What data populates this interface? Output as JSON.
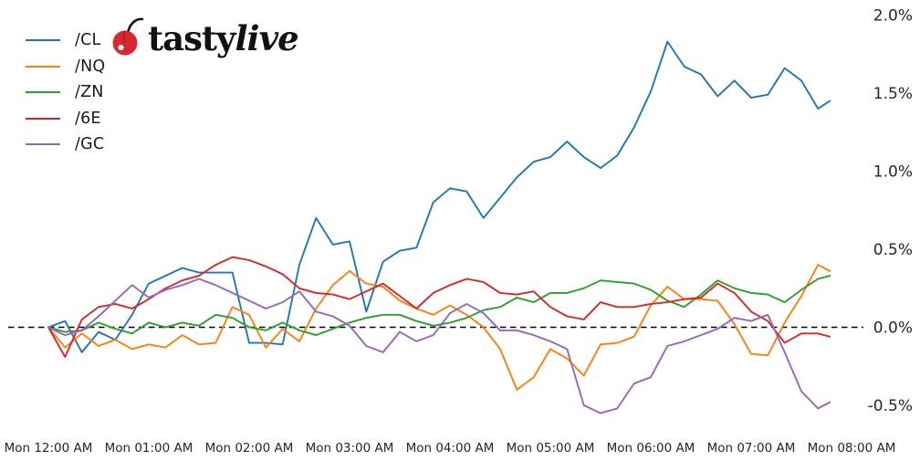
{
  "page": {
    "background": "#ffffff"
  },
  "logo": {
    "brand_primary": "tasty",
    "brand_secondary": "live",
    "cherry_color": "#d7282f",
    "stem_color": "#111111",
    "text_color": "#111111"
  },
  "legend": {
    "items": [
      {
        "label": "/CL",
        "color": "#1f77b4"
      },
      {
        "label": "/NQ",
        "color": "#ff7f0e"
      },
      {
        "label": "/ZN",
        "color": "#2ca02c"
      },
      {
        "label": "/6E",
        "color": "#d62728"
      },
      {
        "label": "/GC",
        "color": "#9467bd"
      }
    ]
  },
  "chart_data": {
    "type": "line",
    "title": "",
    "xlabel": "",
    "ylabel": "",
    "grid": false,
    "legend_position": "upper-left",
    "x_axis": {
      "tick_labels": [
        "Mon 12:00 AM",
        "Mon 01:00 AM",
        "Mon 02:00 AM",
        "Mon 03:00 AM",
        "Mon 04:00 AM",
        "Mon 05:00 AM",
        "Mon 06:00 AM",
        "Mon 07:00 AM",
        "Mon 08:00 AM"
      ],
      "tick_minutes": [
        0,
        60,
        120,
        180,
        240,
        300,
        360,
        420,
        480
      ]
    },
    "y_axis": {
      "side": "right",
      "unit": "%",
      "tick_labels": [
        "2.0%",
        "1.5%",
        "1.0%",
        "0.5%",
        "0.0%",
        "-0.5%"
      ],
      "tick_values": [
        2.0,
        1.5,
        1.0,
        0.5,
        0.0,
        -0.5
      ],
      "range": [
        -0.72,
        2.05
      ]
    },
    "zero_line": {
      "value": 0.0,
      "style": "dashed",
      "color": "#000000"
    },
    "sample_minutes": [
      0,
      10,
      20,
      30,
      40,
      50,
      60,
      70,
      80,
      90,
      100,
      110,
      120,
      130,
      140,
      150,
      160,
      170,
      180,
      190,
      200,
      210,
      220,
      230,
      240,
      250,
      260,
      270,
      280,
      290,
      300,
      310,
      320,
      330,
      340,
      350,
      360,
      370,
      380,
      390,
      400,
      410,
      420,
      430,
      440,
      450,
      460,
      467
    ],
    "series": [
      {
        "name": "/CL",
        "color": "#1f77b4",
        "values": [
          0.0,
          0.04,
          -0.16,
          -0.03,
          -0.08,
          0.08,
          0.28,
          0.33,
          0.38,
          0.35,
          0.35,
          0.35,
          -0.1,
          -0.1,
          -0.11,
          0.4,
          0.7,
          0.53,
          0.55,
          0.1,
          0.42,
          0.49,
          0.51,
          0.8,
          0.89,
          0.87,
          0.7,
          0.83,
          0.96,
          1.06,
          1.09,
          1.19,
          1.09,
          1.02,
          1.1,
          1.28,
          1.51,
          1.83,
          1.67,
          1.62,
          1.48,
          1.58,
          1.47,
          1.49,
          1.66,
          1.58,
          1.4,
          1.45
        ]
      },
      {
        "name": "/NQ",
        "color": "#ff7f0e",
        "values": [
          0.0,
          -0.13,
          -0.04,
          -0.12,
          -0.08,
          -0.14,
          -0.11,
          -0.13,
          -0.05,
          -0.11,
          -0.1,
          0.13,
          0.08,
          -0.13,
          -0.01,
          -0.09,
          0.12,
          0.27,
          0.36,
          0.28,
          0.26,
          0.17,
          0.12,
          0.08,
          0.14,
          0.08,
          0.0,
          -0.14,
          -0.4,
          -0.32,
          -0.14,
          -0.2,
          -0.31,
          -0.11,
          -0.1,
          -0.06,
          0.14,
          0.26,
          0.18,
          0.18,
          0.17,
          0.02,
          -0.17,
          -0.18,
          0.03,
          0.2,
          0.4,
          0.36
        ]
      },
      {
        "name": "/ZN",
        "color": "#2ca02c",
        "values": [
          0.0,
          -0.03,
          -0.02,
          0.03,
          -0.01,
          -0.04,
          0.03,
          0.0,
          0.03,
          0.01,
          0.08,
          0.06,
          0.0,
          -0.02,
          0.03,
          -0.02,
          -0.05,
          -0.01,
          0.03,
          0.06,
          0.08,
          0.08,
          0.04,
          0.01,
          0.03,
          0.06,
          0.11,
          0.13,
          0.19,
          0.16,
          0.22,
          0.22,
          0.25,
          0.3,
          0.29,
          0.28,
          0.24,
          0.17,
          0.13,
          0.21,
          0.3,
          0.25,
          0.22,
          0.21,
          0.16,
          0.24,
          0.31,
          0.33
        ]
      },
      {
        "name": "/6E",
        "color": "#d62728",
        "values": [
          0.0,
          -0.19,
          0.05,
          0.13,
          0.15,
          0.12,
          0.18,
          0.25,
          0.3,
          0.33,
          0.4,
          0.45,
          0.43,
          0.39,
          0.34,
          0.25,
          0.22,
          0.21,
          0.18,
          0.23,
          0.28,
          0.2,
          0.12,
          0.22,
          0.27,
          0.31,
          0.29,
          0.22,
          0.21,
          0.23,
          0.13,
          0.07,
          0.05,
          0.16,
          0.13,
          0.13,
          0.15,
          0.16,
          0.18,
          0.19,
          0.28,
          0.22,
          0.1,
          0.04,
          -0.1,
          -0.04,
          -0.04,
          -0.06
        ]
      },
      {
        "name": "/GC",
        "color": "#9467bd",
        "values": [
          0.0,
          -0.05,
          -0.02,
          0.07,
          0.17,
          0.27,
          0.19,
          0.24,
          0.27,
          0.31,
          0.27,
          0.22,
          0.17,
          0.12,
          0.16,
          0.23,
          0.1,
          0.07,
          0.01,
          -0.12,
          -0.16,
          -0.03,
          -0.09,
          -0.05,
          0.09,
          0.15,
          0.09,
          -0.02,
          -0.02,
          -0.05,
          -0.09,
          -0.14,
          -0.5,
          -0.55,
          -0.52,
          -0.36,
          -0.32,
          -0.12,
          -0.09,
          -0.05,
          -0.01,
          0.06,
          0.04,
          0.08,
          -0.16,
          -0.41,
          -0.52,
          -0.48
        ]
      }
    ]
  }
}
